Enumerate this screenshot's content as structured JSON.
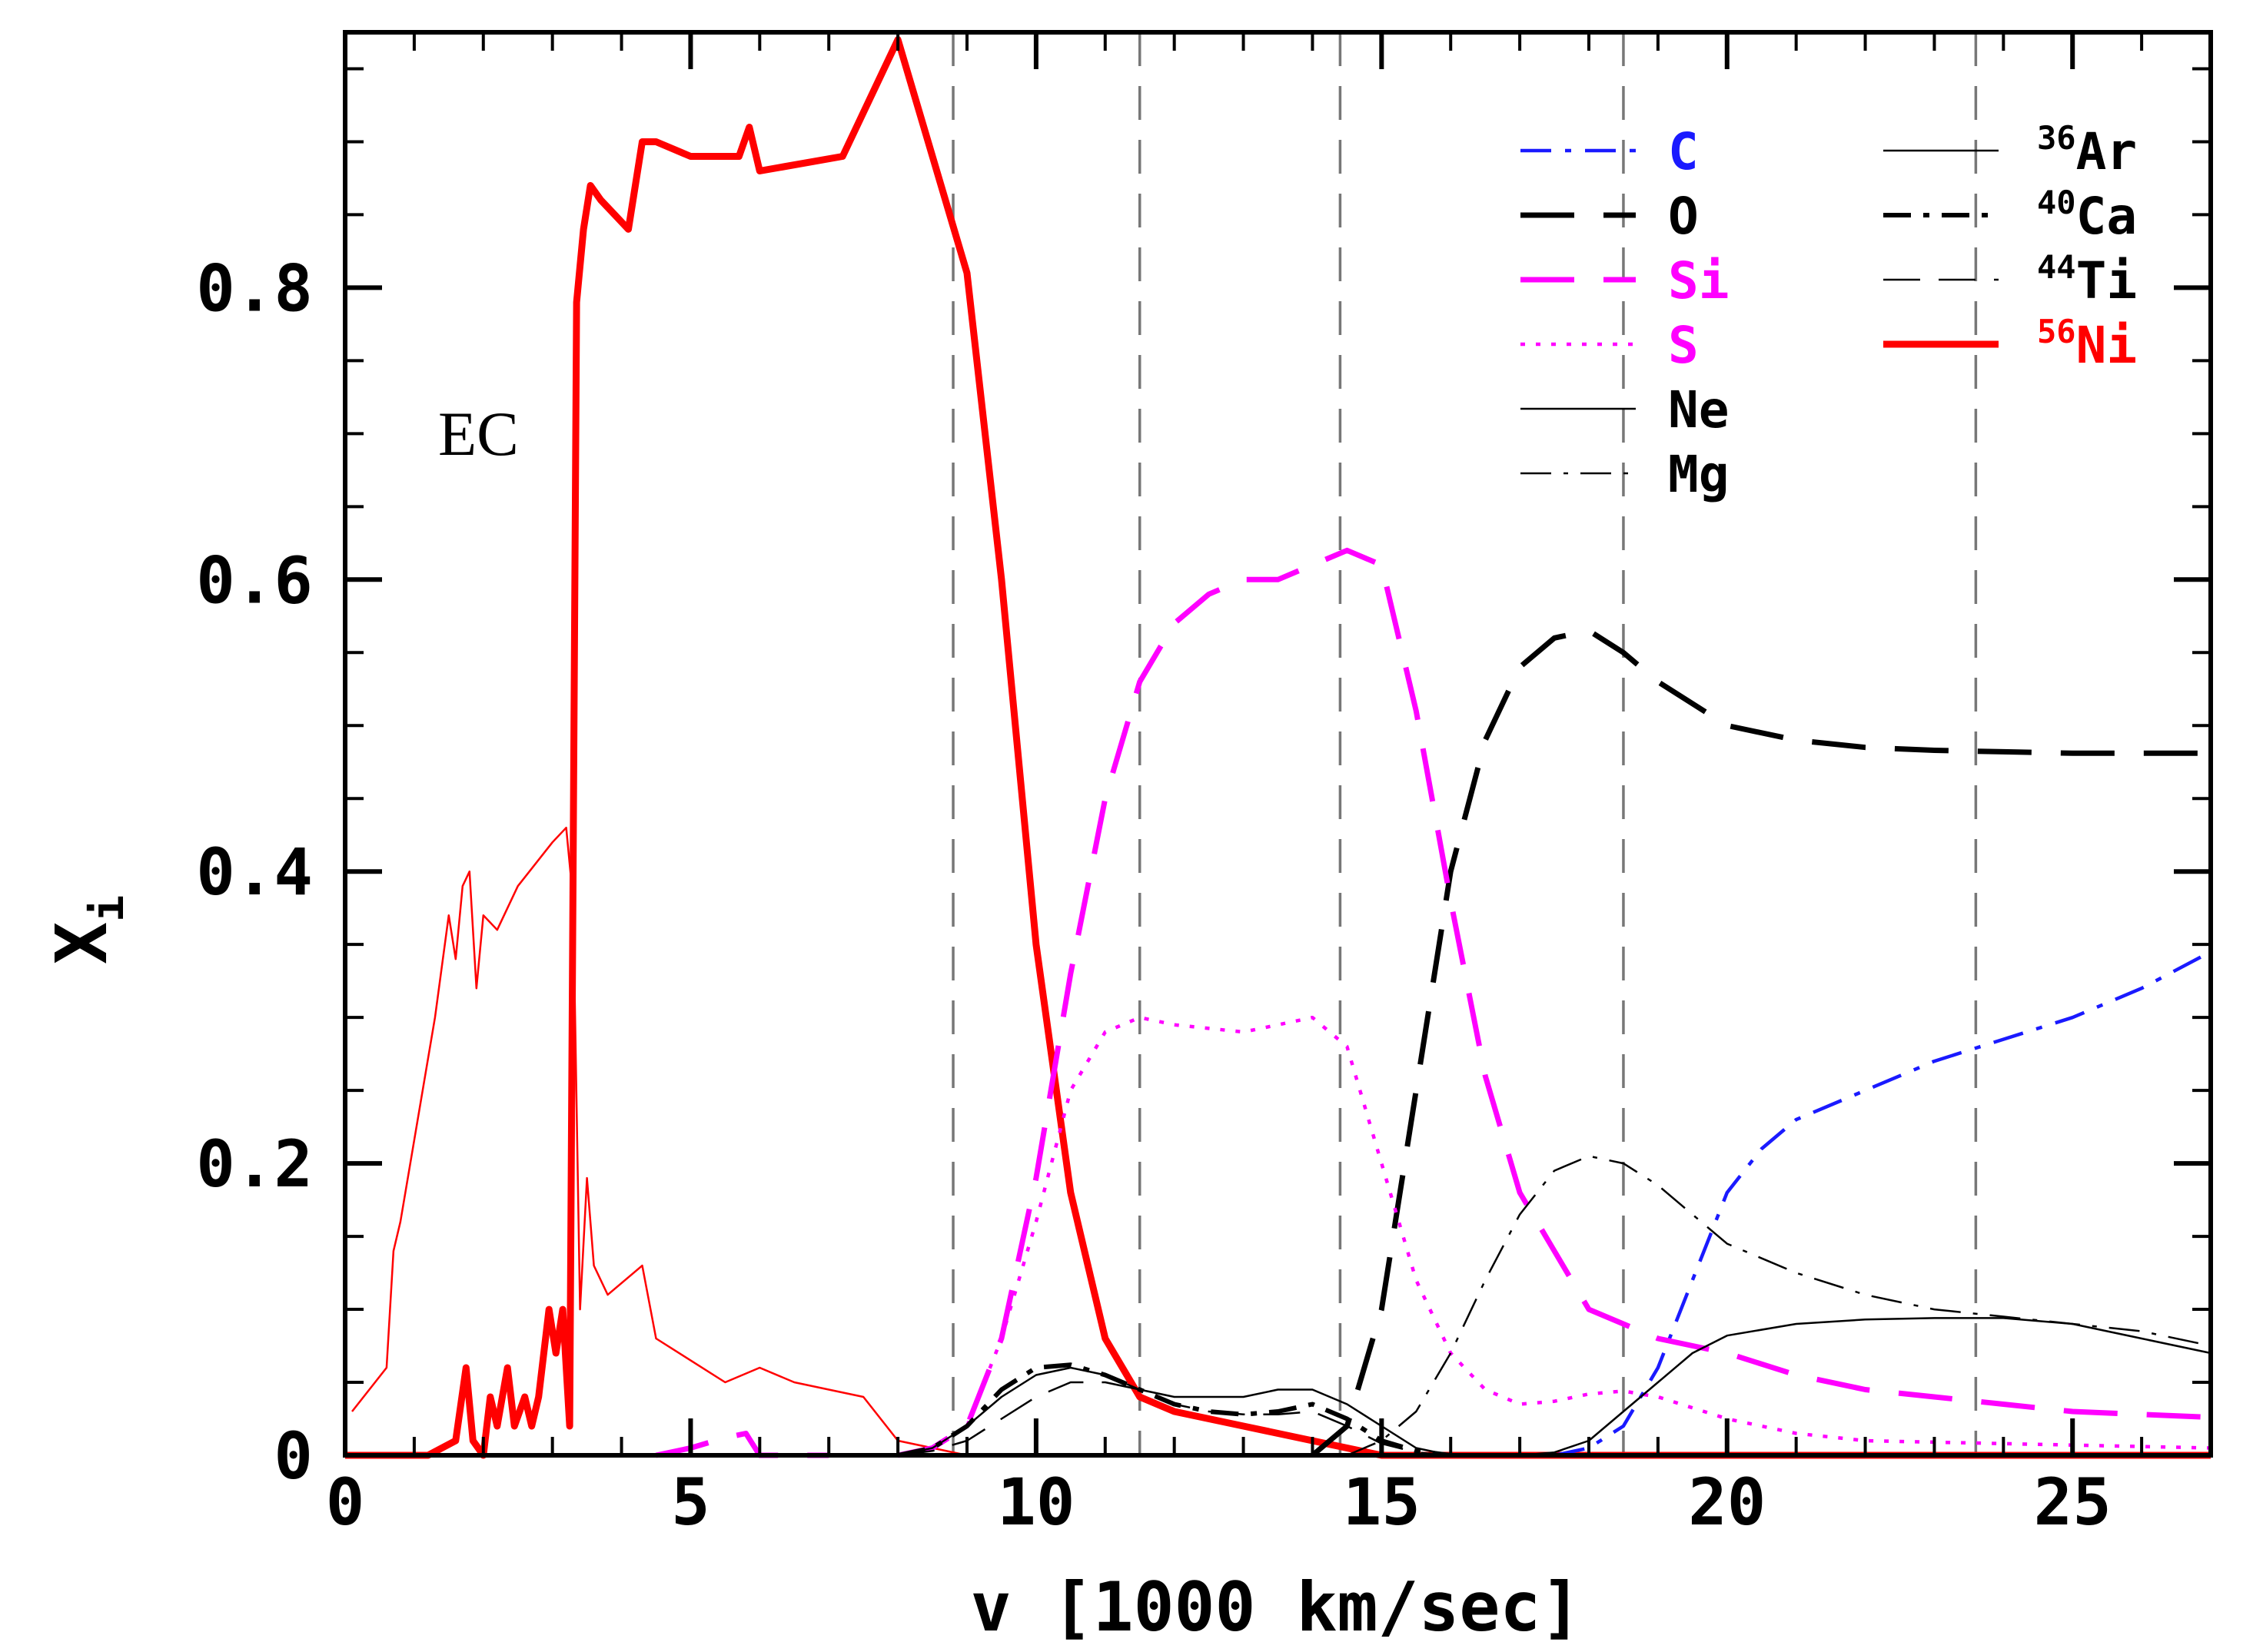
{
  "chart_data": {
    "type": "line",
    "xlabel": "v [1000 km/sec]",
    "ylabel_main": "X",
    "ylabel_sub": "i",
    "annotation": "EC",
    "xlim": [
      0,
      27
    ],
    "ylim": [
      0,
      0.975
    ],
    "x_ticks": [
      0,
      5,
      10,
      15,
      20,
      25
    ],
    "x_tick_labels": [
      "0",
      "5",
      "10",
      "15",
      "20",
      "25"
    ],
    "y_ticks": [
      0,
      0.2,
      0.4,
      0.6,
      0.8
    ],
    "y_tick_labels": [
      "0",
      "0.2",
      "0.4",
      "0.6",
      "0.8"
    ],
    "vertical_lines_x": [
      8.8,
      11.5,
      14.4,
      18.5,
      23.6
    ],
    "legend": [
      {
        "name": "C",
        "label": "C",
        "sup": "",
        "color": "#1a1aff"
      },
      {
        "name": "O",
        "label": "O",
        "sup": "",
        "color": "#000000"
      },
      {
        "name": "Si",
        "label": "Si",
        "sup": "",
        "color": "#ff00ff"
      },
      {
        "name": "S",
        "label": "S",
        "sup": "",
        "color": "#ff00ff"
      },
      {
        "name": "Ne",
        "label": "Ne",
        "sup": "",
        "color": "#000000"
      },
      {
        "name": "Mg",
        "label": "Mg",
        "sup": "",
        "color": "#000000"
      },
      {
        "name": "Ar36",
        "label": "Ar",
        "sup": "36",
        "color": "#000000"
      },
      {
        "name": "Ca40",
        "label": "Ca",
        "sup": "40",
        "color": "#000000"
      },
      {
        "name": "Ti44",
        "label": "Ti",
        "sup": "44",
        "color": "#000000"
      },
      {
        "name": "Ni56",
        "label": "Ni",
        "sup": "56",
        "color": "#ff0000"
      }
    ],
    "series": [
      {
        "name": "Ni56",
        "style": "solid-thick",
        "color": "#ff0000",
        "x": [
          0,
          1.2,
          1.6,
          1.75,
          1.85,
          2.0,
          2.1,
          2.2,
          2.35,
          2.45,
          2.6,
          2.7,
          2.8,
          2.95,
          3.05,
          3.15,
          3.25,
          3.35,
          3.45,
          3.55,
          3.7,
          3.9,
          4.1,
          4.3,
          4.5,
          5.0,
          5.7,
          5.85,
          6.0,
          7.2,
          8.0,
          9.0,
          9.5,
          10.0,
          10.5,
          11.0,
          11.5,
          12.0,
          13.0,
          14.0,
          15.0,
          27.0
        ],
        "y": [
          0,
          0,
          0.01,
          0.06,
          0.01,
          0.0,
          0.04,
          0.02,
          0.06,
          0.02,
          0.04,
          0.02,
          0.04,
          0.1,
          0.07,
          0.1,
          0.02,
          0.79,
          0.84,
          0.87,
          0.86,
          0.85,
          0.84,
          0.9,
          0.9,
          0.89,
          0.89,
          0.91,
          0.88,
          0.89,
          0.97,
          0.81,
          0.6,
          0.35,
          0.18,
          0.08,
          0.04,
          0.03,
          0.02,
          0.01,
          0.0,
          0.0
        ]
      },
      {
        "name": "Ni56-thin",
        "style": "solid-thin",
        "color": "#ff0000",
        "x": [
          0.1,
          0.6,
          0.7,
          0.8,
          1.3,
          1.5,
          1.6,
          1.7,
          1.8,
          1.9,
          2.0,
          2.2,
          2.5,
          3.0,
          3.2,
          3.3,
          3.4,
          3.5,
          3.6,
          3.8,
          4.3,
          4.5,
          5.5,
          6.0,
          6.5,
          7.0,
          7.5,
          8.0,
          9.0
        ],
        "y": [
          0.03,
          0.06,
          0.14,
          0.16,
          0.3,
          0.37,
          0.34,
          0.39,
          0.4,
          0.32,
          0.37,
          0.36,
          0.39,
          0.42,
          0.43,
          0.38,
          0.1,
          0.19,
          0.13,
          0.11,
          0.13,
          0.08,
          0.05,
          0.06,
          0.05,
          0.045,
          0.04,
          0.01,
          0.0
        ]
      },
      {
        "name": "C",
        "style": "dashdot",
        "color": "#1a1aff",
        "x": [
          17.5,
          18.0,
          18.5,
          19.0,
          19.5,
          20.0,
          20.5,
          21.0,
          22.0,
          23.0,
          24.0,
          25.0,
          26.0,
          27.0
        ],
        "y": [
          0.0,
          0.005,
          0.02,
          0.06,
          0.12,
          0.18,
          0.21,
          0.23,
          0.25,
          0.27,
          0.285,
          0.3,
          0.32,
          0.345
        ]
      },
      {
        "name": "O",
        "style": "dash-long",
        "color": "#000000",
        "x": [
          14.0,
          14.5,
          15.0,
          15.5,
          16.0,
          16.5,
          17.0,
          17.5,
          18.0,
          18.5,
          19.0,
          20.0,
          21.0,
          22.0,
          23.0,
          24.0,
          25.0,
          27.0
        ],
        "y": [
          0.0,
          0.02,
          0.1,
          0.25,
          0.4,
          0.49,
          0.54,
          0.56,
          0.565,
          0.55,
          0.53,
          0.5,
          0.49,
          0.485,
          0.483,
          0.482,
          0.481,
          0.481
        ]
      },
      {
        "name": "Si",
        "style": "dash-long",
        "color": "#ff00ff",
        "x": [
          8.0,
          8.5,
          9.0,
          9.5,
          10.0,
          10.5,
          11.0,
          11.5,
          12.0,
          12.5,
          13.0,
          13.5,
          14.0,
          14.5,
          15.0,
          15.5,
          16.0,
          16.5,
          17.0,
          17.5,
          18.0,
          19.0,
          20.0,
          21.0,
          22.0,
          23.0,
          24.0,
          25.0,
          27.0
        ],
        "y": [
          0.0,
          0.005,
          0.02,
          0.08,
          0.19,
          0.33,
          0.45,
          0.53,
          0.57,
          0.59,
          0.6,
          0.6,
          0.61,
          0.62,
          0.61,
          0.51,
          0.38,
          0.26,
          0.18,
          0.14,
          0.1,
          0.08,
          0.07,
          0.055,
          0.045,
          0.04,
          0.035,
          0.03,
          0.026
        ]
      },
      {
        "name": "S",
        "style": "dotted",
        "color": "#ff00ff",
        "x": [
          8.0,
          8.5,
          9.0,
          9.5,
          10.0,
          10.5,
          11.0,
          11.5,
          12.0,
          13.0,
          13.5,
          14.0,
          14.5,
          15.0,
          15.5,
          16.0,
          16.5,
          17.0,
          17.5,
          18.0,
          18.5,
          19.0,
          20.0,
          21.0,
          22.0,
          24.0,
          27.0
        ],
        "y": [
          0.0,
          0.005,
          0.02,
          0.08,
          0.16,
          0.25,
          0.29,
          0.3,
          0.295,
          0.29,
          0.295,
          0.3,
          0.28,
          0.2,
          0.12,
          0.07,
          0.045,
          0.035,
          0.037,
          0.042,
          0.044,
          0.04,
          0.025,
          0.015,
          0.01,
          0.008,
          0.005
        ]
      },
      {
        "name": "Ne",
        "style": "solid-thin",
        "color": "#000000",
        "x": [
          16.5,
          17.0,
          17.5,
          18.0,
          18.5,
          19.0,
          19.5,
          20.0,
          21.0,
          22.0,
          23.0,
          24.0,
          25.0,
          26.0,
          27.0
        ],
        "y": [
          0.0,
          0.0,
          0.002,
          0.01,
          0.03,
          0.05,
          0.07,
          0.082,
          0.09,
          0.093,
          0.094,
          0.094,
          0.09,
          0.08,
          0.07
        ]
      },
      {
        "name": "Mg",
        "style": "dashdot-thin",
        "color": "#000000",
        "x": [
          14.5,
          15.0,
          15.5,
          16.0,
          16.5,
          17.0,
          17.5,
          18.0,
          18.5,
          19.0,
          19.5,
          20.0,
          21.0,
          22.0,
          23.0,
          24.0,
          25.0,
          26.0,
          27.0
        ],
        "y": [
          0.0,
          0.01,
          0.03,
          0.07,
          0.12,
          0.165,
          0.195,
          0.205,
          0.2,
          0.185,
          0.165,
          0.145,
          0.125,
          0.11,
          0.1,
          0.095,
          0.09,
          0.085,
          0.075
        ]
      },
      {
        "name": "Ar36",
        "style": "solid-thin",
        "color": "#000000",
        "x": [
          8.0,
          8.5,
          9.0,
          9.5,
          10.0,
          10.5,
          11.0,
          11.5,
          12.0,
          12.5,
          13.0,
          13.5,
          14.0,
          14.5,
          15.0,
          15.5,
          16.0
        ],
        "y": [
          0.0,
          0.005,
          0.02,
          0.04,
          0.055,
          0.06,
          0.055,
          0.045,
          0.04,
          0.04,
          0.04,
          0.045,
          0.045,
          0.035,
          0.02,
          0.005,
          0.0
        ]
      },
      {
        "name": "Ca40",
        "style": "dashdot-thick",
        "color": "#000000",
        "x": [
          8.0,
          8.5,
          9.0,
          9.5,
          10.0,
          10.5,
          11.0,
          11.5,
          12.0,
          12.5,
          13.0,
          13.5,
          14.0,
          14.5,
          15.0,
          15.5,
          16.0
        ],
        "y": [
          0.0,
          0.005,
          0.02,
          0.045,
          0.06,
          0.062,
          0.055,
          0.045,
          0.035,
          0.03,
          0.028,
          0.03,
          0.035,
          0.025,
          0.01,
          0.003,
          0.0
        ]
      },
      {
        "name": "Ti44",
        "style": "dash-thin",
        "color": "#000000",
        "x": [
          8.0,
          8.5,
          9.0,
          9.5,
          10.0,
          10.5,
          11.0,
          11.5,
          12.0,
          12.5,
          13.0,
          13.5,
          14.0,
          14.5,
          15.0,
          15.5,
          16.0
        ],
        "y": [
          0.0,
          0.003,
          0.01,
          0.025,
          0.04,
          0.05,
          0.05,
          0.045,
          0.035,
          0.03,
          0.028,
          0.028,
          0.03,
          0.02,
          0.008,
          0.002,
          0.0
        ]
      },
      {
        "name": "low-Si-S",
        "style": "dash-long",
        "color": "#ff00ff",
        "x": [
          4.5,
          5.0,
          5.5,
          5.8,
          6.0,
          7.0
        ],
        "y": [
          0.0,
          0.005,
          0.012,
          0.015,
          0.0,
          0.0
        ]
      }
    ]
  }
}
